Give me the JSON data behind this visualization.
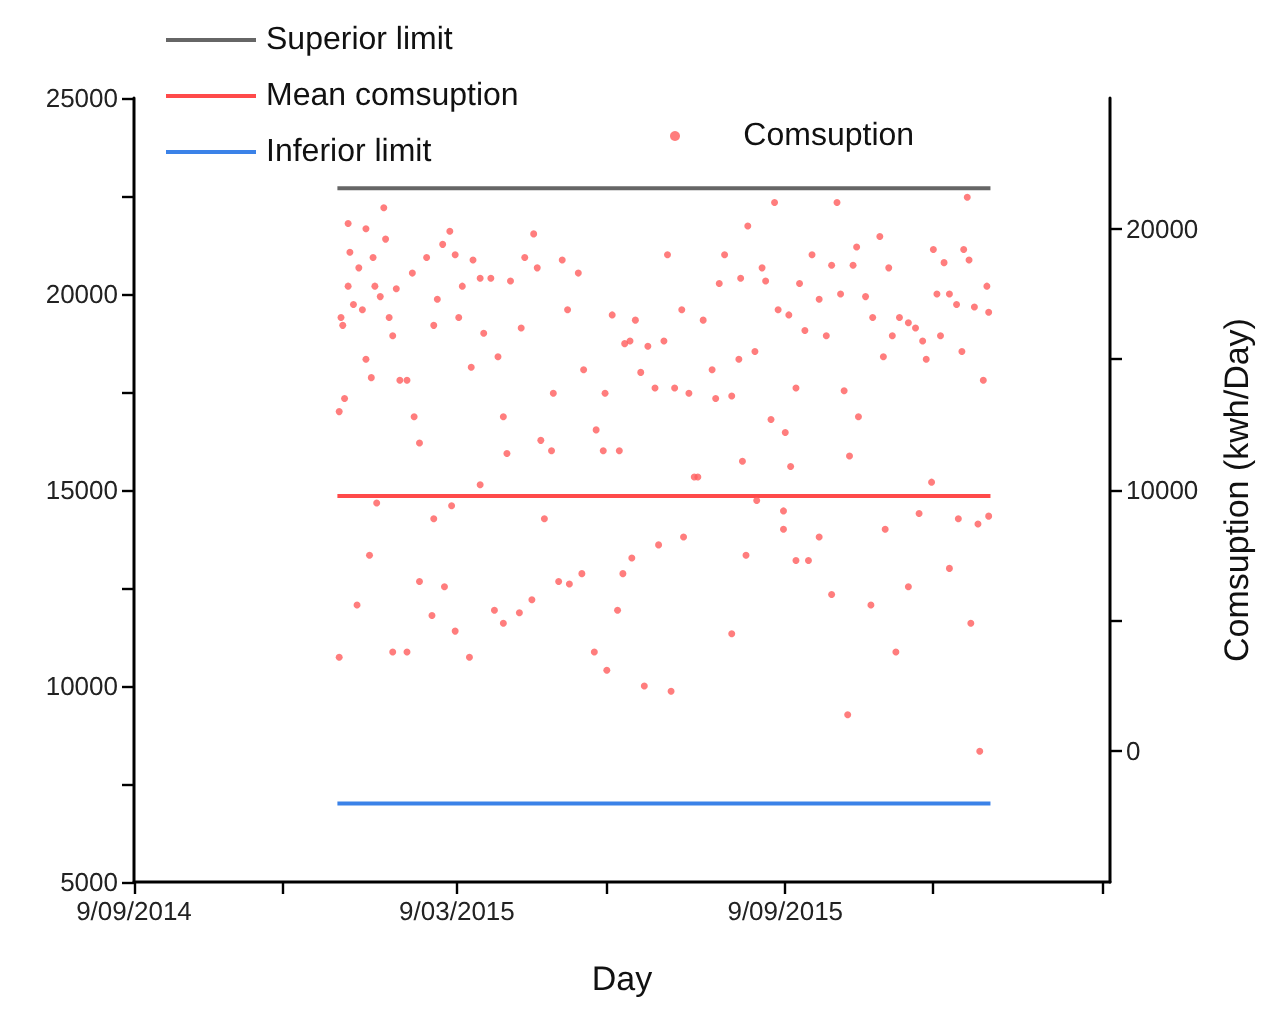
{
  "chart_data": {
    "type": "scatter",
    "xlabel": "Day",
    "y2label": "Comsuption (kwh/Day)",
    "xlim": [
      "2014-09-09",
      "2016-03-09"
    ],
    "xticks": [
      {
        "value": "2014-09-09",
        "label": "9/09/2014"
      },
      {
        "value": "2014-12-01",
        "label": null
      },
      {
        "value": "2015-03-09",
        "label": "9/03/2015"
      },
      {
        "value": "2015-06-01",
        "label": null
      },
      {
        "value": "2015-09-09",
        "label": "9/09/2015"
      },
      {
        "value": "2015-12-01",
        "label": null
      },
      {
        "value": "2016-03-05",
        "label": null
      }
    ],
    "ylim": [
      5000,
      25000
    ],
    "yticks": [
      5000,
      {
        "value": 7500,
        "label": null
      },
      10000,
      {
        "value": 12500,
        "label": null
      },
      15000,
      {
        "value": 17500,
        "label": null
      },
      20000,
      {
        "value": 22500,
        "label": null
      },
      25000
    ],
    "y2lim": [
      -5000,
      25000
    ],
    "y2ticks": [
      0,
      {
        "value": 5000,
        "label": null
      },
      10000,
      {
        "value": 15000,
        "label": null
      },
      20000
    ],
    "grid": false,
    "legend": "top",
    "series": [
      {
        "name": "Superior limit",
        "type": "line",
        "color": "#666666",
        "x": [
          "2015-01-01",
          "2016-01-02"
        ],
        "values": [
          22700,
          22700
        ]
      },
      {
        "name": "Mean comsuption",
        "type": "line",
        "color": "#ff4a4a",
        "x": [
          "2015-01-01",
          "2016-01-02"
        ],
        "values": [
          14850,
          14850
        ]
      },
      {
        "name": "Inferior limit",
        "type": "line",
        "color": "#3b82e8",
        "x": [
          "2015-01-01",
          "2016-01-02"
        ],
        "values": [
          7000,
          7000
        ]
      },
      {
        "name": "Comsuption",
        "axis": "y2",
        "marker": "circle",
        "color": "#ff5c5c",
        "x": [
          "2015-01-02",
          "2015-01-02",
          "2015-01-03",
          "2015-01-04",
          "2015-01-05",
          "2015-01-07",
          "2015-01-07",
          "2015-01-08",
          "2015-01-10",
          "2015-01-12",
          "2015-01-13",
          "2015-01-15",
          "2015-01-17",
          "2015-01-17",
          "2015-01-19",
          "2015-01-20",
          "2015-01-21",
          "2015-01-22",
          "2015-01-23",
          "2015-01-25",
          "2015-01-27",
          "2015-01-28",
          "2015-01-30",
          "2015-02-01",
          "2015-02-01",
          "2015-02-03",
          "2015-02-05",
          "2015-02-09",
          "2015-02-09",
          "2015-02-12",
          "2015-02-13",
          "2015-02-16",
          "2015-02-16",
          "2015-02-20",
          "2015-02-23",
          "2015-02-24",
          "2015-02-24",
          "2015-02-26",
          "2015-03-01",
          "2015-03-02",
          "2015-03-05",
          "2015-03-06",
          "2015-03-08",
          "2015-03-08",
          "2015-03-10",
          "2015-03-12",
          "2015-03-16",
          "2015-03-17",
          "2015-03-18",
          "2015-03-22",
          "2015-03-22",
          "2015-03-24",
          "2015-03-28",
          "2015-03-30",
          "2015-04-01",
          "2015-04-04",
          "2015-04-04",
          "2015-04-06",
          "2015-04-08",
          "2015-04-13",
          "2015-04-14",
          "2015-04-16",
          "2015-04-20",
          "2015-04-21",
          "2015-04-23",
          "2015-04-25",
          "2015-04-27",
          "2015-05-01",
          "2015-05-02",
          "2015-05-05",
          "2015-05-07",
          "2015-05-10",
          "2015-05-11",
          "2015-05-16",
          "2015-05-18",
          "2015-05-19",
          "2015-05-25",
          "2015-05-26",
          "2015-05-30",
          "2015-05-31",
          "2015-06-01",
          "2015-06-04",
          "2015-06-07",
          "2015-06-08",
          "2015-06-10",
          "2015-06-11",
          "2015-06-14",
          "2015-06-15",
          "2015-06-17",
          "2015-06-20",
          "2015-06-22",
          "2015-06-24",
          "2015-06-28",
          "2015-06-30",
          "2015-07-03",
          "2015-07-05",
          "2015-07-07",
          "2015-07-09",
          "2015-07-13",
          "2015-07-14",
          "2015-07-17",
          "2015-07-20",
          "2015-07-22",
          "2015-07-25",
          "2015-07-30",
          "2015-08-01",
          "2015-08-03",
          "2015-08-06",
          "2015-08-10",
          "2015-08-10",
          "2015-08-14",
          "2015-08-15",
          "2015-08-16",
          "2015-08-18",
          "2015-08-19",
          "2015-08-23",
          "2015-08-24",
          "2015-08-27",
          "2015-08-29",
          "2015-09-01",
          "2015-09-03",
          "2015-09-05",
          "2015-09-08",
          "2015-09-08",
          "2015-09-09",
          "2015-09-11",
          "2015-09-12",
          "2015-09-15",
          "2015-09-15",
          "2015-09-17",
          "2015-09-20",
          "2015-09-22",
          "2015-09-24",
          "2015-09-28",
          "2015-09-28",
          "2015-10-02",
          "2015-10-05",
          "2015-10-05",
          "2015-10-08",
          "2015-10-10",
          "2015-10-12",
          "2015-10-14",
          "2015-10-15",
          "2015-10-17",
          "2015-10-19",
          "2015-10-20",
          "2015-10-24",
          "2015-10-27",
          "2015-10-28",
          "2015-11-01",
          "2015-11-03",
          "2015-11-04",
          "2015-11-06",
          "2015-11-08",
          "2015-11-10",
          "2015-11-12",
          "2015-11-17",
          "2015-11-17",
          "2015-11-21",
          "2015-11-23",
          "2015-11-25",
          "2015-11-27",
          "2015-11-30",
          "2015-12-01",
          "2015-12-03",
          "2015-12-05",
          "2015-12-07",
          "2015-12-10",
          "2015-12-10",
          "2015-12-14",
          "2015-12-15",
          "2015-12-17",
          "2015-12-18",
          "2015-12-20",
          "2015-12-21",
          "2015-12-22",
          "2015-12-24",
          "2015-12-26",
          "2015-12-27",
          "2015-12-29",
          "2015-12-31",
          "2016-01-01",
          "2016-01-01"
        ],
        "values": [
          3600,
          13000,
          16600,
          16300,
          13500,
          17800,
          20200,
          19100,
          17100,
          5600,
          18500,
          16900,
          15000,
          20000,
          7500,
          14300,
          18900,
          17800,
          9500,
          17400,
          20800,
          19600,
          16600,
          15900,
          3800,
          17700,
          14200,
          3800,
          14200,
          18300,
          12800,
          6500,
          11800,
          18900,
          5200,
          16300,
          8900,
          17300,
          19400,
          6300,
          19900,
          9400,
          19000,
          4600,
          16600,
          17800,
          3600,
          14700,
          18800,
          18100,
          10200,
          16000,
          18100,
          5400,
          15100,
          12800,
          4900,
          11400,
          18000,
          5300,
          16200,
          18900,
          5800,
          19800,
          18500,
          11900,
          8900,
          11500,
          13700,
          6500,
          18800,
          16900,
          6400,
          18300,
          6800,
          14600,
          3800,
          12300,
          11500,
          13700,
          3100,
          16700,
          5400,
          11500,
          6800,
          15600,
          15700,
          7400,
          16500,
          14500,
          2500,
          15500,
          13900,
          7900,
          15700,
          19000,
          2300,
          13900,
          16900,
          8200,
          13700,
          10500,
          10500,
          16500,
          14600,
          13500,
          17900,
          19000,
          4500,
          13600,
          15000,
          18100,
          11100,
          7500,
          20100,
          15300,
          9600,
          18500,
          18000,
          12700,
          21000,
          16900,
          8500,
          9200,
          12200,
          16700,
          10900,
          7300,
          13900,
          17900,
          16100,
          7300,
          19000,
          17300,
          8200,
          15900,
          18600,
          6000,
          21000,
          17500,
          13800,
          1400,
          11300,
          18600,
          19300,
          12800,
          17400,
          5600,
          16600,
          19700,
          15100,
          8500,
          18500,
          15900,
          3800,
          16600,
          16400,
          6300,
          16200,
          9100,
          15700,
          15000,
          10300,
          19200,
          17500,
          15900,
          18700,
          17500,
          7000,
          17100,
          8900,
          15300,
          19200,
          21200,
          18800,
          4900,
          17000,
          8700,
          0,
          14200,
          17800,
          16800,
          9000
        ]
      }
    ]
  }
}
